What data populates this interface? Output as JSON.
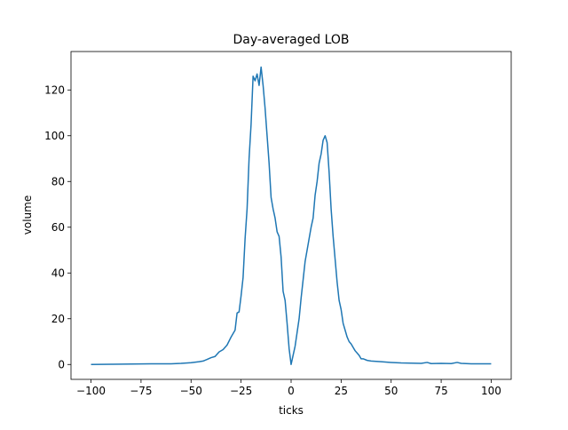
{
  "chart_data": {
    "type": "line",
    "title": "Day-averaged LOB",
    "x_label": "ticks",
    "y_label": "volume",
    "color": "#1f77b4",
    "grid": false,
    "x": [
      -100,
      -90,
      -80,
      -70,
      -60,
      -55,
      -50,
      -46,
      -44,
      -42,
      -40,
      -38,
      -36,
      -34,
      -32,
      -30,
      -28,
      -27,
      -26,
      -25,
      -24,
      -23,
      -22,
      -21,
      -20,
      -19,
      -18,
      -17,
      -16,
      -15,
      -14,
      -13,
      -12,
      -11,
      -10,
      -9,
      -8,
      -7,
      -6,
      -5,
      -4,
      -3,
      -2,
      -1,
      0,
      1,
      2,
      3,
      4,
      5,
      6,
      7,
      8,
      9,
      10,
      11,
      12,
      13,
      14,
      15,
      16,
      17,
      18,
      19,
      20,
      21,
      22,
      23,
      24,
      25,
      26,
      27,
      28,
      29,
      30,
      31,
      32,
      33,
      34,
      35,
      36,
      38,
      40,
      45,
      50,
      55,
      60,
      65,
      68,
      70,
      75,
      80,
      83,
      85,
      90,
      95,
      100
    ],
    "values": [
      0,
      0.1,
      0.2,
      0.3,
      0.3,
      0.5,
      0.8,
      1.2,
      1.5,
      2.2,
      3,
      3.5,
      5.5,
      6.5,
      8.5,
      12,
      15,
      22.5,
      23,
      30,
      38,
      55,
      68,
      90,
      105,
      126,
      124,
      127,
      122,
      130,
      122,
      112,
      100,
      88,
      73,
      68,
      64,
      58,
      56,
      47,
      32,
      28,
      18,
      7,
      0,
      4,
      8,
      14,
      20,
      29,
      37,
      45,
      50,
      55,
      60,
      64,
      74,
      80,
      88,
      92,
      98,
      100,
      97,
      84,
      68,
      56,
      46,
      36,
      28,
      24,
      18,
      15,
      12,
      10,
      9,
      7.5,
      6,
      5,
      4,
      2.5,
      2.5,
      1.8,
      1.5,
      1.2,
      0.9,
      0.7,
      0.6,
      0.5,
      0.9,
      0.4,
      0.5,
      0.4,
      0.9,
      0.5,
      0.3,
      0.3,
      0.3
    ],
    "xlim": [
      -110,
      110
    ],
    "ylim": [
      -6.5,
      136.8
    ],
    "xticks": [
      {
        "value": -100,
        "label": "−100"
      },
      {
        "value": -75,
        "label": "−75"
      },
      {
        "value": -50,
        "label": "−50"
      },
      {
        "value": -25,
        "label": "−25"
      },
      0,
      25,
      50,
      75,
      100
    ],
    "yticks": [
      0,
      20,
      40,
      60,
      80,
      100,
      120
    ]
  }
}
